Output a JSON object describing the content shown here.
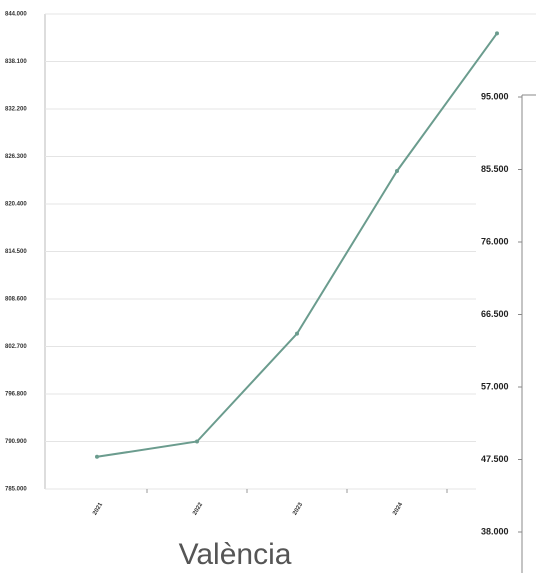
{
  "chart_data": [
    {
      "type": "line",
      "title": "València",
      "categories": [
        "2021",
        "2022",
        "2023",
        "2024",
        null
      ],
      "series": [
        {
          "color": "#6b9c8e",
          "values": [
            789000,
            790900,
            804300,
            824500,
            841600
          ]
        }
      ],
      "ylim": [
        785000,
        844000
      ],
      "yticks": [
        {
          "value": 785000,
          "label": "785.000"
        },
        {
          "value": 790900,
          "label": "790.900"
        },
        {
          "value": 796800,
          "label": "796.800"
        },
        {
          "value": 802700,
          "label": "802.700"
        },
        {
          "value": 808600,
          "label": "808.600"
        },
        {
          "value": 814500,
          "label": "814.500"
        },
        {
          "value": 820400,
          "label": "820.400"
        },
        {
          "value": 826300,
          "label": "826.300"
        },
        {
          "value": 832200,
          "label": "832.200"
        },
        {
          "value": 838100,
          "label": "838.100"
        },
        {
          "value": 844000,
          "label": "844.000"
        }
      ],
      "grid": true
    },
    {
      "type": "line",
      "ylim": [
        38000,
        95000
      ],
      "yticks": [
        {
          "value": 38000,
          "label": "38.000"
        },
        {
          "value": 47500,
          "label": "47.500"
        },
        {
          "value": 57000,
          "label": "57.000"
        },
        {
          "value": 66500,
          "label": "66.500"
        },
        {
          "value": 76000,
          "label": "76.000"
        },
        {
          "value": 85500,
          "label": "85.500"
        },
        {
          "value": 95000,
          "label": "95.000"
        }
      ],
      "grid": false
    }
  ]
}
